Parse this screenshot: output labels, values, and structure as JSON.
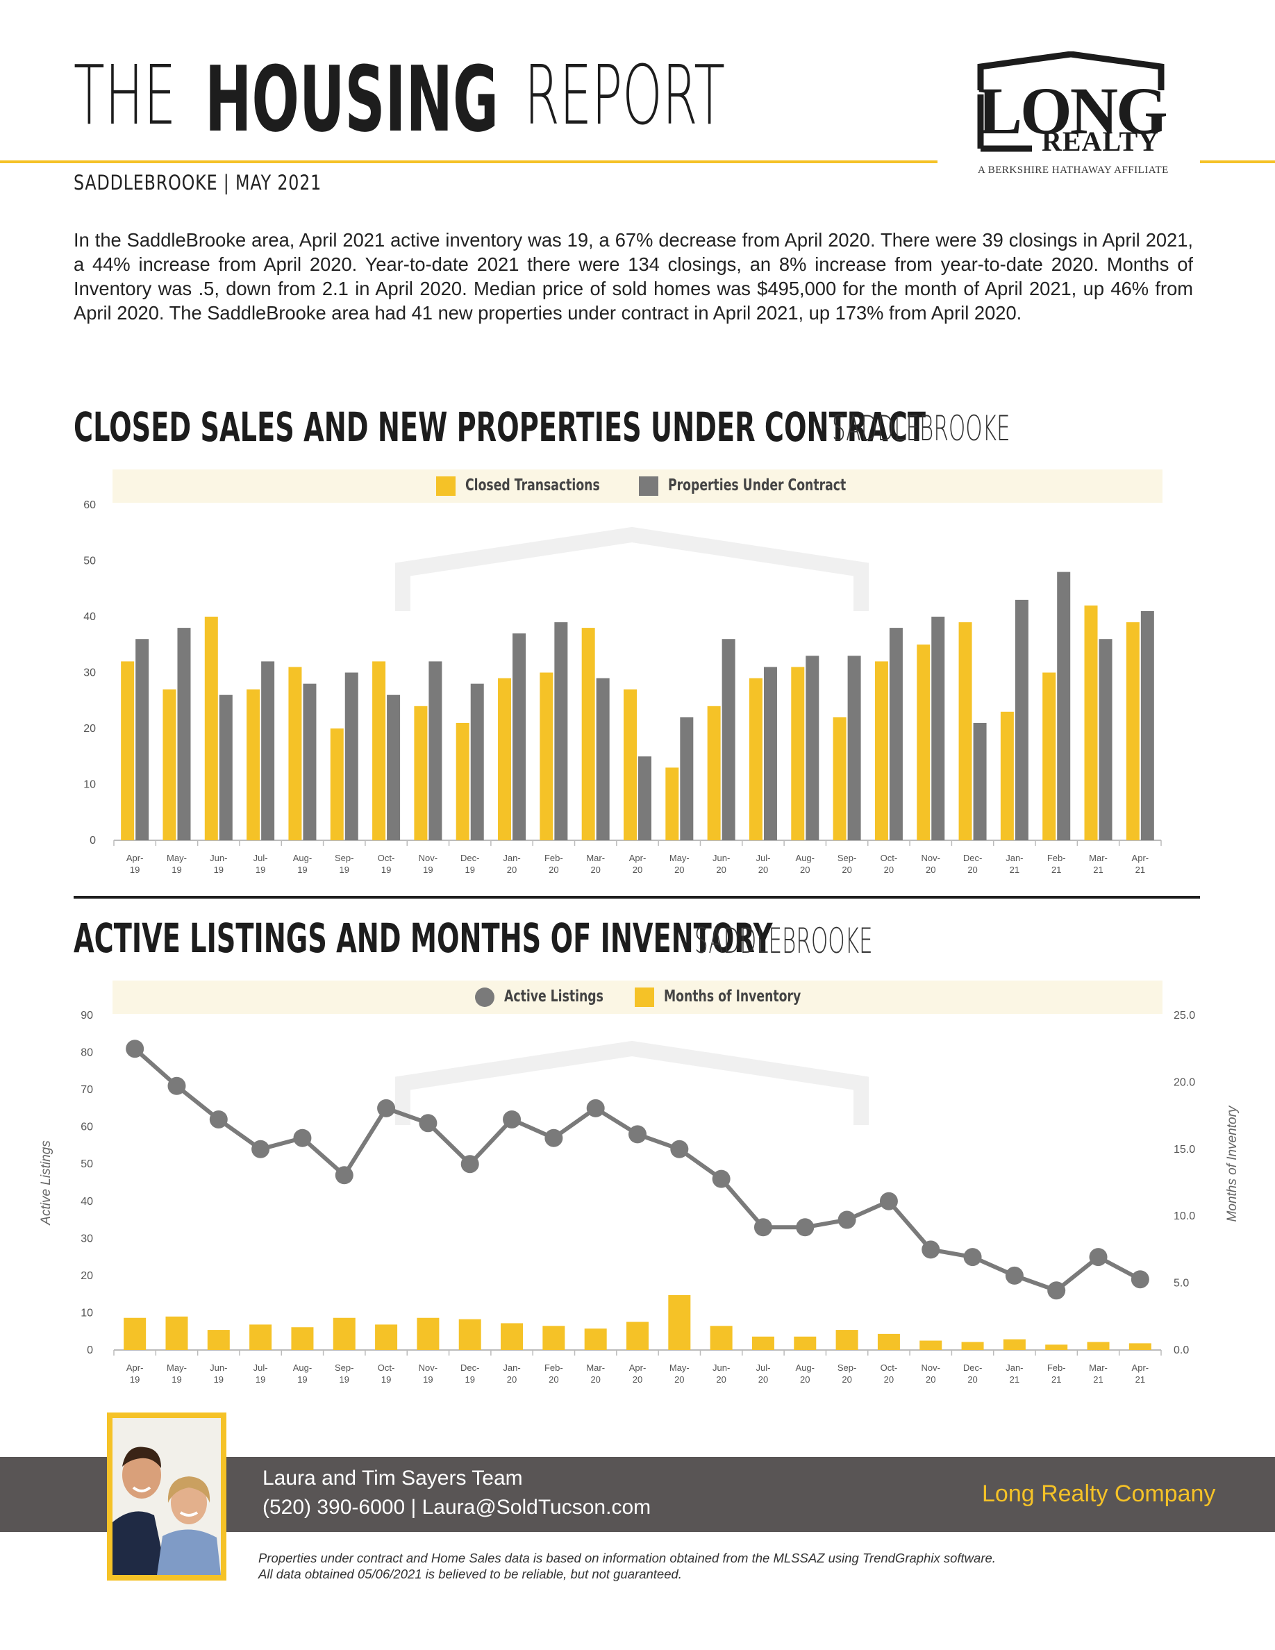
{
  "header": {
    "title_the": "THE",
    "title_housing": "HOUSING",
    "title_report": "REPORT",
    "subtitle": "SADDLEBROOKE | MAY 2021",
    "intro": "In the SaddleBrooke area, April 2021 active inventory was 19, a 67% decrease from April 2020. There were 39 closings in April 2021, a 44% increase from April 2020. Year-to-date 2021 there were 134 closings, an 8% increase from year-to-date 2020. Months of Inventory was .5, down from 2.1 in April 2020. Median price of sold homes was $495,000 for the month of April 2021, up 46% from April 2020. The SaddleBrooke area had 41 new properties under contract in April 2021, up 173% from April 2020."
  },
  "logo": {
    "word": "LONG",
    "realty": "REALTY",
    "affiliate": "A BERKSHIRE HATHAWAY AFFILIATE"
  },
  "section1": {
    "title_bold": "CLOSED SALES AND NEW PROPERTIES UNDER CONTRACT",
    "title_thin": "SADDLEBROOKE"
  },
  "section2": {
    "title_bold": "ACTIVE LISTINGS AND MONTHS OF INVENTORY",
    "title_thin": "SADDLEBROOKE"
  },
  "colors": {
    "yellow": "#f5c227",
    "gray": "#7a7a7a",
    "dark": "#1d1d1d"
  },
  "chart_data": [
    {
      "type": "bar",
      "categories": [
        "Apr-19",
        "May-19",
        "Jun-19",
        "Jul-19",
        "Aug-19",
        "Sep-19",
        "Oct-19",
        "Nov-19",
        "Dec-19",
        "Jan-20",
        "Feb-20",
        "Mar-20",
        "Apr-20",
        "May-20",
        "Jun-20",
        "Jul-20",
        "Aug-20",
        "Sep-20",
        "Oct-20",
        "Nov-20",
        "Dec-20",
        "Jan-21",
        "Feb-21",
        "Mar-21",
        "Apr-21"
      ],
      "series": [
        {
          "name": "Closed Transactions",
          "color": "#f5c227",
          "values": [
            32,
            27,
            40,
            27,
            31,
            20,
            32,
            24,
            21,
            29,
            30,
            38,
            27,
            13,
            24,
            29,
            31,
            22,
            32,
            35,
            39,
            23,
            30,
            42,
            39
          ]
        },
        {
          "name": "Properties Under Contract",
          "color": "#7a7a7a",
          "values": [
            36,
            38,
            26,
            32,
            28,
            30,
            26,
            32,
            28,
            37,
            39,
            29,
            15,
            22,
            36,
            31,
            33,
            33,
            38,
            40,
            21,
            43,
            48,
            36,
            41
          ]
        }
      ],
      "yticks": [
        "0",
        "10",
        "20",
        "30",
        "40",
        "50",
        "60"
      ],
      "ylim": [
        0,
        60
      ],
      "legend": "top-center",
      "grid": false
    },
    {
      "type": "line",
      "categories": [
        "Apr-19",
        "May-19",
        "Jun-19",
        "Jul-19",
        "Aug-19",
        "Sep-19",
        "Oct-19",
        "Nov-19",
        "Dec-19",
        "Jan-20",
        "Feb-20",
        "Mar-20",
        "Apr-20",
        "May-20",
        "Jun-20",
        "Jul-20",
        "Aug-20",
        "Sep-20",
        "Oct-20",
        "Nov-20",
        "Dec-20",
        "Jan-21",
        "Feb-21",
        "Mar-21",
        "Apr-21"
      ],
      "series": [
        {
          "name": "Active Listings",
          "color": "#7a7a7a",
          "axis": "left",
          "values": [
            81,
            71,
            62,
            54,
            57,
            47,
            65,
            61,
            50,
            62,
            57,
            65,
            58,
            54,
            46,
            33,
            33,
            35,
            40,
            27,
            25,
            20,
            16,
            25,
            19
          ]
        },
        {
          "name": "Months of Inventory",
          "color": "#f5c227",
          "axis": "right",
          "values": [
            2.4,
            2.5,
            1.5,
            1.9,
            1.7,
            2.4,
            1.9,
            2.4,
            2.3,
            2.0,
            1.8,
            1.6,
            2.1,
            4.1,
            1.8,
            1.0,
            1.0,
            1.5,
            1.2,
            0.7,
            0.6,
            0.8,
            0.4,
            0.6,
            0.5
          ]
        }
      ],
      "ylabel": "Active Listings",
      "y2label": "Months of Inventory",
      "yticks": [
        "0",
        "10",
        "20",
        "30",
        "40",
        "50",
        "60",
        "70",
        "80",
        "90"
      ],
      "y2ticks": [
        "0.0",
        "5.0",
        "10.0",
        "15.0",
        "20.0",
        "25.0"
      ],
      "ylim": [
        0,
        90
      ],
      "y2lim": [
        0,
        25
      ],
      "legend": "top-center",
      "grid": false
    }
  ],
  "footer": {
    "agent_name": "Laura and Tim Sayers Team",
    "agent_contact": "(520) 390-6000 | Laura@SoldTucson.com",
    "company": "Long Realty Company",
    "disclaimer_line1": "Properties under contract and Home Sales data is based on information obtained from the MLSSAZ using TrendGraphix software.",
    "disclaimer_line2": "All data obtained 05/06/2021 is believed to be reliable, but not guaranteed."
  }
}
